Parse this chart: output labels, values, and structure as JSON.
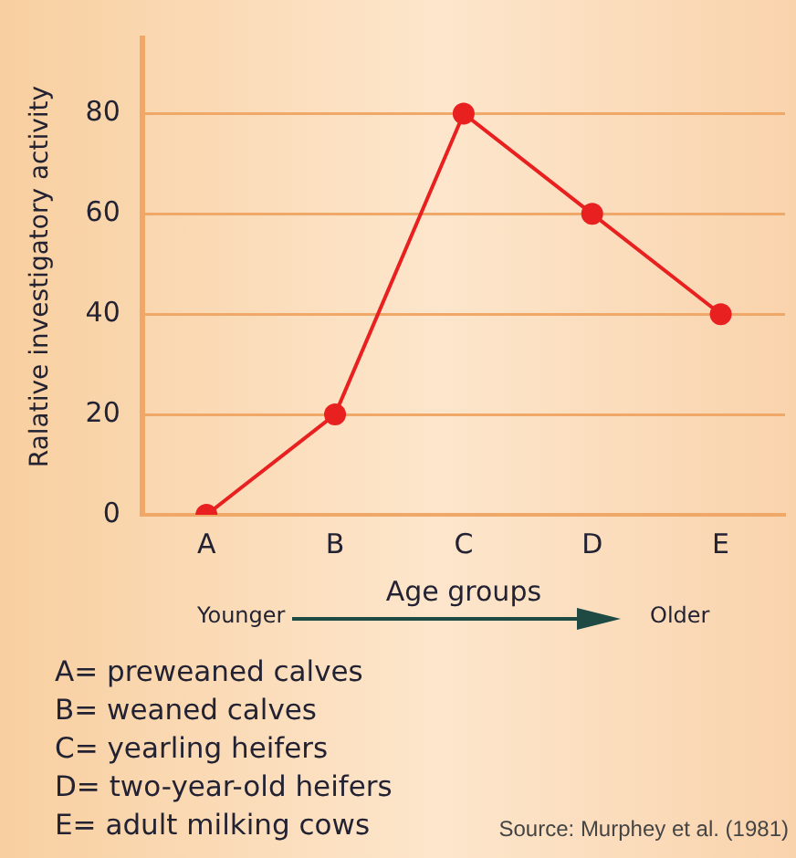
{
  "chart_data": {
    "type": "line",
    "xlabel": "Age groups",
    "ylabel": "Ralative investigatory activity",
    "categories": [
      "A",
      "B",
      "C",
      "D",
      "E"
    ],
    "series": [
      {
        "color": "#e82020",
        "values": [
          0,
          20,
          80,
          60,
          40
        ]
      }
    ],
    "ylim": [
      0,
      95
    ],
    "yticks": [
      0,
      20,
      40,
      60,
      80
    ],
    "grid": "y",
    "legend": false,
    "marker": "circle",
    "line_style": "solid",
    "annotations": [
      "Younger",
      "Older",
      "A= preweaned calves",
      "B= weaned calves",
      "C= yearling heifers",
      "D= two-year-old heifers",
      "E= adult milking cows",
      "Source: Murphey et al. (1981)"
    ]
  }
}
